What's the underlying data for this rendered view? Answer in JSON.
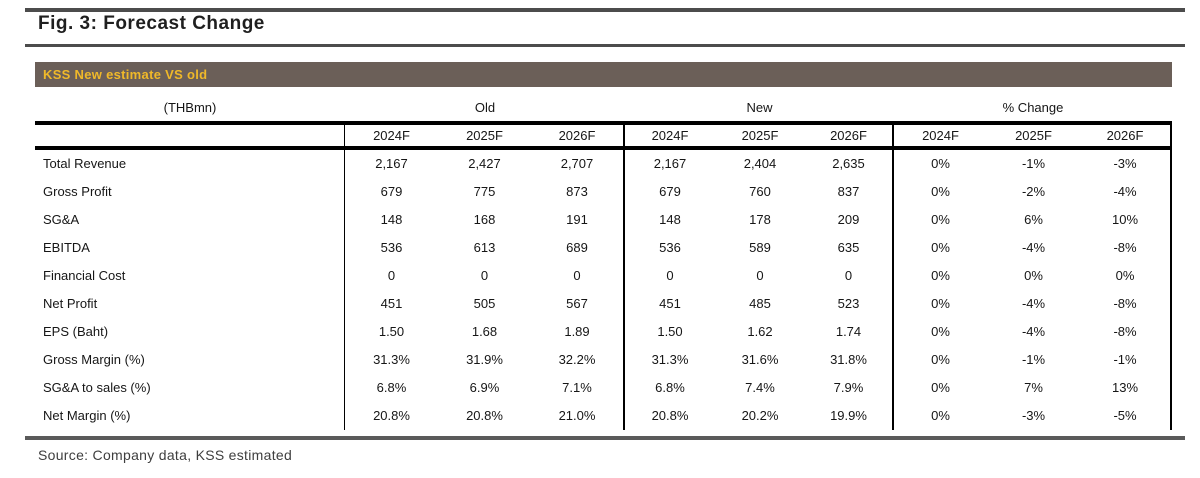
{
  "figure": {
    "title": "Fig. 3: Forecast Change"
  },
  "banner": {
    "title": "KSS New estimate VS old",
    "bg_color": "#6b5f58",
    "text_color": "#f0b929"
  },
  "table": {
    "unit_label": "(THBmn)",
    "groups": [
      "Old",
      "New",
      "% Change"
    ],
    "year_headers": [
      "2024F",
      "2025F",
      "2026F"
    ],
    "rows": [
      {
        "label": "Total Revenue",
        "old": [
          "2,167",
          "2,427",
          "2,707"
        ],
        "new": [
          "2,167",
          "2,404",
          "2,635"
        ],
        "chg": [
          "0%",
          "-1%",
          "-3%"
        ]
      },
      {
        "label": "Gross Profit",
        "old": [
          "679",
          "775",
          "873"
        ],
        "new": [
          "679",
          "760",
          "837"
        ],
        "chg": [
          "0%",
          "-2%",
          "-4%"
        ]
      },
      {
        "label": "SG&A",
        "old": [
          "148",
          "168",
          "191"
        ],
        "new": [
          "148",
          "178",
          "209"
        ],
        "chg": [
          "0%",
          "6%",
          "10%"
        ]
      },
      {
        "label": "EBITDA",
        "old": [
          "536",
          "613",
          "689"
        ],
        "new": [
          "536",
          "589",
          "635"
        ],
        "chg": [
          "0%",
          "-4%",
          "-8%"
        ]
      },
      {
        "label": "Financial Cost",
        "old": [
          "0",
          "0",
          "0"
        ],
        "new": [
          "0",
          "0",
          "0"
        ],
        "chg": [
          "0%",
          "0%",
          "0%"
        ]
      },
      {
        "label": "Net Profit",
        "old": [
          "451",
          "505",
          "567"
        ],
        "new": [
          "451",
          "485",
          "523"
        ],
        "chg": [
          "0%",
          "-4%",
          "-8%"
        ]
      },
      {
        "label": "EPS (Baht)",
        "old": [
          "1.50",
          "1.68",
          "1.89"
        ],
        "new": [
          "1.50",
          "1.62",
          "1.74"
        ],
        "chg": [
          "0%",
          "-4%",
          "-8%"
        ]
      },
      {
        "label": "Gross Margin (%)",
        "old": [
          "31.3%",
          "31.9%",
          "32.2%"
        ],
        "new": [
          "31.3%",
          "31.6%",
          "31.8%"
        ],
        "chg": [
          "0%",
          "-1%",
          "-1%"
        ]
      },
      {
        "label": "SG&A to sales (%)",
        "old": [
          "6.8%",
          "6.9%",
          "7.1%"
        ],
        "new": [
          "6.8%",
          "7.4%",
          "7.9%"
        ],
        "chg": [
          "0%",
          "7%",
          "13%"
        ]
      },
      {
        "label": "Net Margin (%)",
        "old": [
          "20.8%",
          "20.8%",
          "21.0%"
        ],
        "new": [
          "20.8%",
          "20.2%",
          "19.9%"
        ],
        "chg": [
          "0%",
          "-3%",
          "-5%"
        ]
      }
    ]
  },
  "footer": {
    "source": "Source: Company data, KSS estimated"
  }
}
